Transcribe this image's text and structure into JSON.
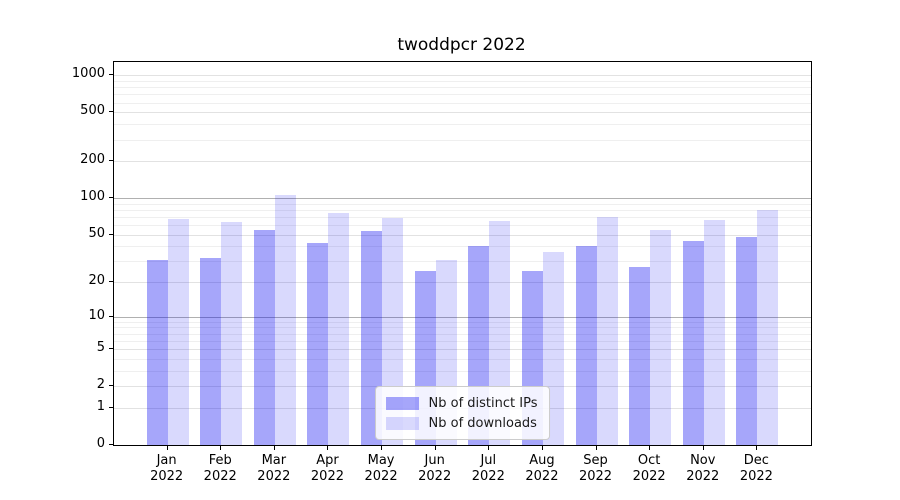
{
  "title": "twoddpcr 2022",
  "chart_data": {
    "type": "bar",
    "title": "twoddpcr 2022",
    "categories": [
      "Jan",
      "Feb",
      "Mar",
      "Apr",
      "May",
      "Jun",
      "Jul",
      "Aug",
      "Sep",
      "Oct",
      "Nov",
      "Dec"
    ],
    "year_label": "2022",
    "series": [
      {
        "name": "Nb of distinct IPs",
        "color_hex": "#a6a6f6",
        "fill": "rgba(0,0,240,0.35)",
        "values": [
          31,
          32,
          55,
          43,
          54,
          25,
          40,
          25,
          40,
          27,
          44,
          48
        ]
      },
      {
        "name": "Nb of downloads",
        "color_hex": "#dbdbf8",
        "fill": "rgba(0,0,240,0.15)",
        "values": [
          67,
          64,
          105,
          75,
          68,
          31,
          65,
          36,
          70,
          55,
          66,
          80
        ]
      }
    ],
    "yscale": "log1p",
    "yticks": [
      0,
      1,
      2,
      5,
      10,
      20,
      50,
      100,
      200,
      500,
      1000
    ],
    "ytick_labels": [
      "0",
      "1",
      "2",
      "5",
      "10",
      "20",
      "50",
      "100",
      "200",
      "500",
      "1000"
    ],
    "minor_gridlines": [
      3,
      4,
      6,
      7,
      8,
      9,
      30,
      40,
      60,
      70,
      80,
      90,
      300,
      400,
      600,
      700,
      800,
      900
    ],
    "emphasized_gridlines": [
      10,
      100
    ],
    "ylim": [
      0,
      1290
    ],
    "grid": true,
    "legend_position": "inside-bottom-center"
  }
}
